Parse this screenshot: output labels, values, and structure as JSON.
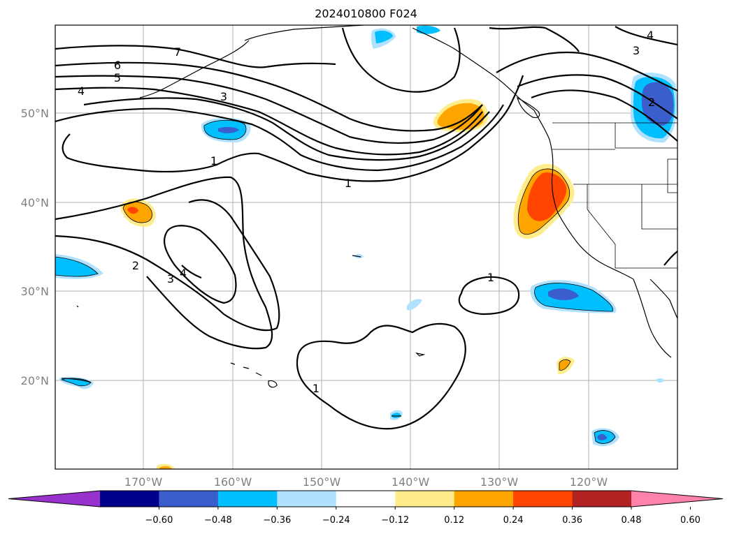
{
  "title": "2024010800 F024",
  "lat_labels": [
    "50°N",
    "40°N",
    "30°N",
    "20°N"
  ],
  "lon_labels": [
    "170°W",
    "160°W",
    "150°W",
    "140°W",
    "130°W",
    "120°W"
  ],
  "contour_labels": [
    "7",
    "6",
    "5",
    "4",
    "3",
    "1",
    "1",
    "2",
    "3",
    "4",
    "1",
    "1",
    "3",
    "4",
    "2"
  ],
  "colorbar": {
    "ticks": [
      "−0.60",
      "−0.48",
      "−0.36",
      "−0.24",
      "−0.12",
      "0.12",
      "0.24",
      "0.36",
      "0.48",
      "0.60"
    ],
    "colors": [
      "#9932cc",
      "#00008b",
      "#3a5fcd",
      "#00bfff",
      "#b0e2ff",
      "#ffffff",
      "#ffec8b",
      "#ffa500",
      "#ff4500",
      "#b22222",
      "#ff82ab"
    ]
  }
}
